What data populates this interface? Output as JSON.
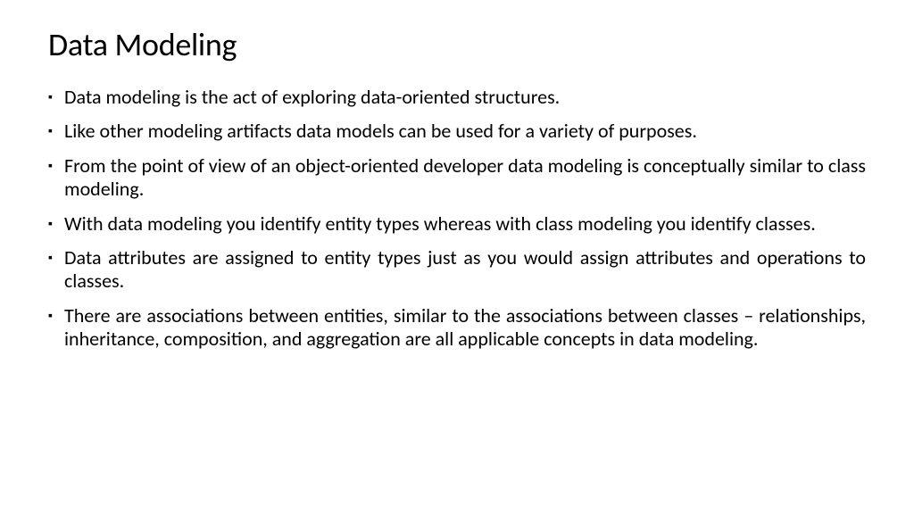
{
  "slide": {
    "title": "Data Modeling",
    "bullets": [
      "Data modeling is the act of exploring data-oriented structures.",
      "Like other modeling artifacts data models can be used for a variety of purposes.",
      "From the point of view of an object-oriented developer data modeling is conceptually similar to class modeling.",
      "With data modeling you identify entity types whereas with class modeling you identify classes.",
      "Data attributes are assigned to entity types just as you would assign attributes and operations to classes.",
      "There are associations between entities, similar to the associations between classes – relationships, inheritance, composition, and aggregation are all applicable concepts in data modeling."
    ],
    "title_fontsize": 36,
    "body_fontsize": 22,
    "background_color": "#ffffff",
    "text_color": "#000000",
    "font_family": "Calibri"
  }
}
